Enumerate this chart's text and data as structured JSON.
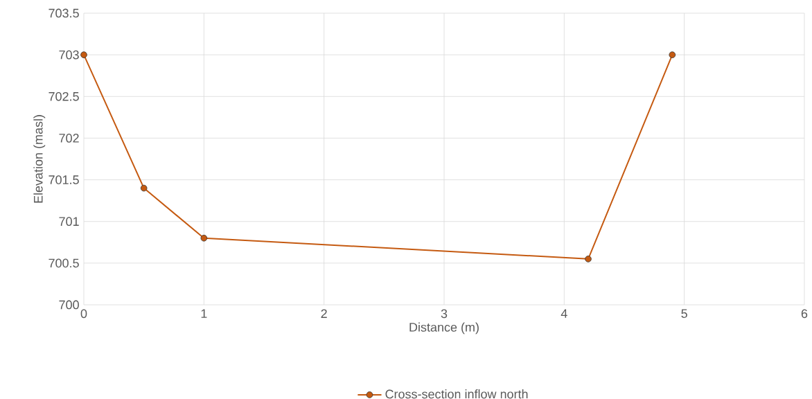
{
  "chart_data": {
    "type": "line",
    "xlabel": "Distance (m)",
    "ylabel": "Elevation (masl)",
    "series": [
      {
        "name": "Cross-section inflow north",
        "color": "#c55a11",
        "x": [
          0,
          0.5,
          1,
          4.2,
          4.9
        ],
        "values": [
          703,
          701.4,
          700.8,
          700.55,
          703
        ]
      }
    ],
    "xlim": [
      0,
      6
    ],
    "xticks": [
      0,
      1,
      2,
      3,
      4,
      5,
      6
    ],
    "ylim": [
      700,
      703.5
    ],
    "yticks": [
      700,
      700.5,
      701,
      701.5,
      702,
      702.5,
      703,
      703.5
    ],
    "grid": true,
    "legend": "bottom",
    "marker": "circle",
    "line_style": "solid"
  }
}
